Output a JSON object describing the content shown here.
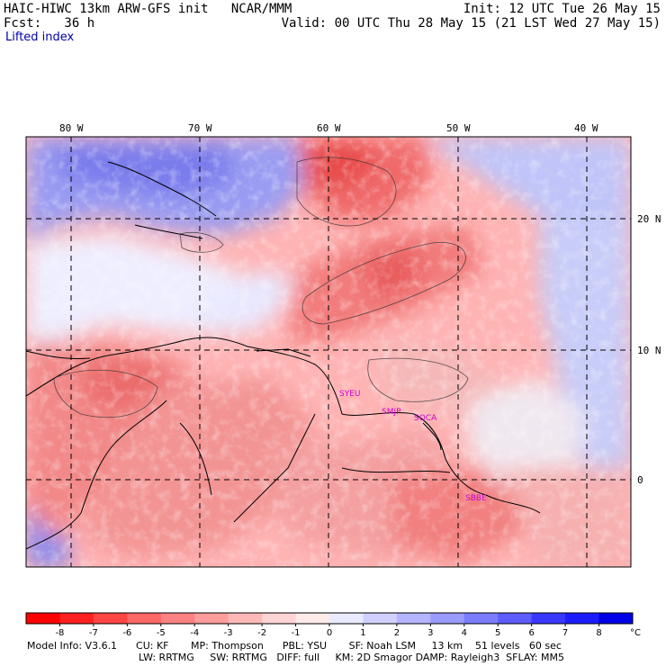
{
  "header": {
    "title": "HAIC-HIWC 13km ARW-GFS init   NCAR/MMM",
    "init": "Init: 12 UTC Tue 26 May 15",
    "fcst": "Fcst:   36 h",
    "valid": "Valid: 00 UTC Thu 28 May 15 (21 LST Wed 27 May 15)",
    "field": "Lifted index"
  },
  "map": {
    "lon_labels": [
      "80 W",
      "70 W",
      "60 W",
      "50 W",
      "40 W"
    ],
    "lat_labels": [
      "20 N",
      "10 N",
      "0"
    ],
    "stations": [
      "SYEU",
      "SMJP",
      "SOCA",
      "SBBE"
    ],
    "colors": {
      "unstable": "#e8323c",
      "neutral": "#ffffff",
      "stable": "#3c3cf0"
    }
  },
  "colorbar": {
    "ticks": [
      "-8",
      "-7",
      "-6",
      "-5",
      "-4",
      "-3",
      "-2",
      "-1",
      "0",
      "1",
      "2",
      "3",
      "4",
      "5",
      "6",
      "7",
      "8"
    ],
    "unit": "°C",
    "colors": [
      "#ff0000",
      "#ff2020",
      "#ff4444",
      "#ff6666",
      "#ff8282",
      "#ff9c9c",
      "#ffb8b8",
      "#ffd4d4",
      "#ffeaea",
      "#eaeaff",
      "#d0d0ff",
      "#b4b4ff",
      "#9a9aff",
      "#7c7cff",
      "#5c5cff",
      "#3838ff",
      "#1c1cff",
      "#0000e8"
    ]
  },
  "model_info": {
    "line1": "Model Info: V3.6.1      CU: KF       MP: Thompson      PBL: YSU       SF: Noah LSM     13 km    51 levels   60 sec",
    "line2": "LW: RRTMG     SW: RRTMG   DIFF: full     KM: 2D Smagor DAMP: Rayleigh3  SFLAY: MM5"
  }
}
